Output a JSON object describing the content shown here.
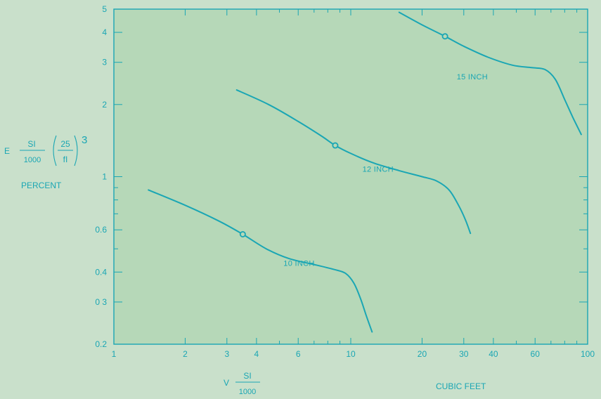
{
  "colors": {
    "background": "#c9e0cb",
    "plot_area": "#b6d8b8",
    "ink": "#1aa6b4"
  },
  "chart_data": {
    "type": "line",
    "xscale": "log",
    "yscale": "log",
    "xlim": [
      1,
      100
    ],
    "ylim": [
      0.2,
      5
    ],
    "x_tick_labels": [
      "1",
      "2",
      "3",
      "4",
      "6",
      "10",
      "20",
      "30",
      "40",
      "60",
      "100"
    ],
    "x_tick_values": [
      1,
      2,
      3,
      4,
      6,
      10,
      20,
      30,
      40,
      60,
      100
    ],
    "y_tick_labels": [
      "0.2",
      "0 3",
      "0.4",
      "0.6",
      "1",
      "2",
      "3",
      "4",
      "5"
    ],
    "y_tick_values": [
      0.2,
      0.3,
      0.4,
      0.6,
      1,
      2,
      3,
      4,
      5
    ],
    "ylabel": {
      "prefix": "E",
      "frac1_num": "SI",
      "frac1_den": "1000",
      "frac2_num": "25",
      "frac2_den": "fI",
      "exponent": "3",
      "unit": "PERCENT"
    },
    "xlabel": {
      "prefix": "V",
      "frac_num": "SI",
      "frac_den": "1000",
      "unit": "CUBIC FEET"
    },
    "series": [
      {
        "name": "10 INCH",
        "x": [
          1.4,
          2.0,
          2.8,
          3.5,
          4.4,
          5.5,
          7.0,
          8.5,
          9.5,
          10.3,
          11.0,
          11.6,
          12.3
        ],
        "y": [
          0.88,
          0.76,
          0.65,
          0.575,
          0.5,
          0.455,
          0.43,
          0.41,
          0.395,
          0.36,
          0.31,
          0.265,
          0.225
        ],
        "marker_x": 3.5,
        "marker_y": 0.575,
        "label_x": 5.2,
        "label_y": 0.425
      },
      {
        "name": "12 INCH",
        "x": [
          3.3,
          4.5,
          6.0,
          7.5,
          8.6,
          10.0,
          12.5,
          16.0,
          20.0,
          23.0,
          26.0,
          28.5,
          30.5,
          32.0
        ],
        "y": [
          2.3,
          2.0,
          1.7,
          1.48,
          1.35,
          1.25,
          1.14,
          1.06,
          1.0,
          0.96,
          0.88,
          0.76,
          0.66,
          0.58
        ],
        "marker_x": 8.6,
        "marker_y": 1.35,
        "label_x": 11.2,
        "label_y": 1.05
      },
      {
        "name": "15 INCH",
        "x": [
          16.0,
          20.0,
          25.0,
          30.0,
          38.0,
          48.0,
          58.0,
          66.0,
          73.0,
          80.0,
          87.0,
          94.0
        ],
        "y": [
          4.85,
          4.3,
          3.85,
          3.5,
          3.15,
          2.92,
          2.85,
          2.8,
          2.55,
          2.1,
          1.75,
          1.5
        ],
        "marker_x": 25.0,
        "marker_y": 3.85,
        "label_x": 28.0,
        "label_y": 2.55
      }
    ]
  }
}
